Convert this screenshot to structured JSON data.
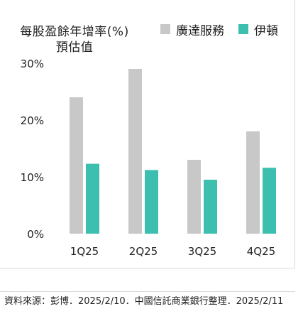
{
  "chart_data": {
    "type": "bar",
    "title_lines": [
      "每股盈餘年增率(%)",
      "預估值"
    ],
    "categories": [
      "1Q25",
      "2Q25",
      "3Q25",
      "4Q25"
    ],
    "series": [
      {
        "name": "廣達服務",
        "color": "#c8c8c8",
        "values": [
          24,
          29,
          13,
          18
        ]
      },
      {
        "name": "伊頓",
        "color": "#3dbfb0",
        "values": [
          12.3,
          11.2,
          9.5,
          11.6
        ]
      }
    ],
    "y_ticks": [
      "0%",
      "10%",
      "20%",
      "30%"
    ],
    "y_tick_values": [
      0,
      10,
      20,
      30
    ],
    "ylim": [
      0,
      30
    ],
    "grid": false,
    "legend_position": "top-right"
  },
  "source_note": "資料來源：彭博．2025/2/10．中國信託商業銀行整理．2025/2/11"
}
